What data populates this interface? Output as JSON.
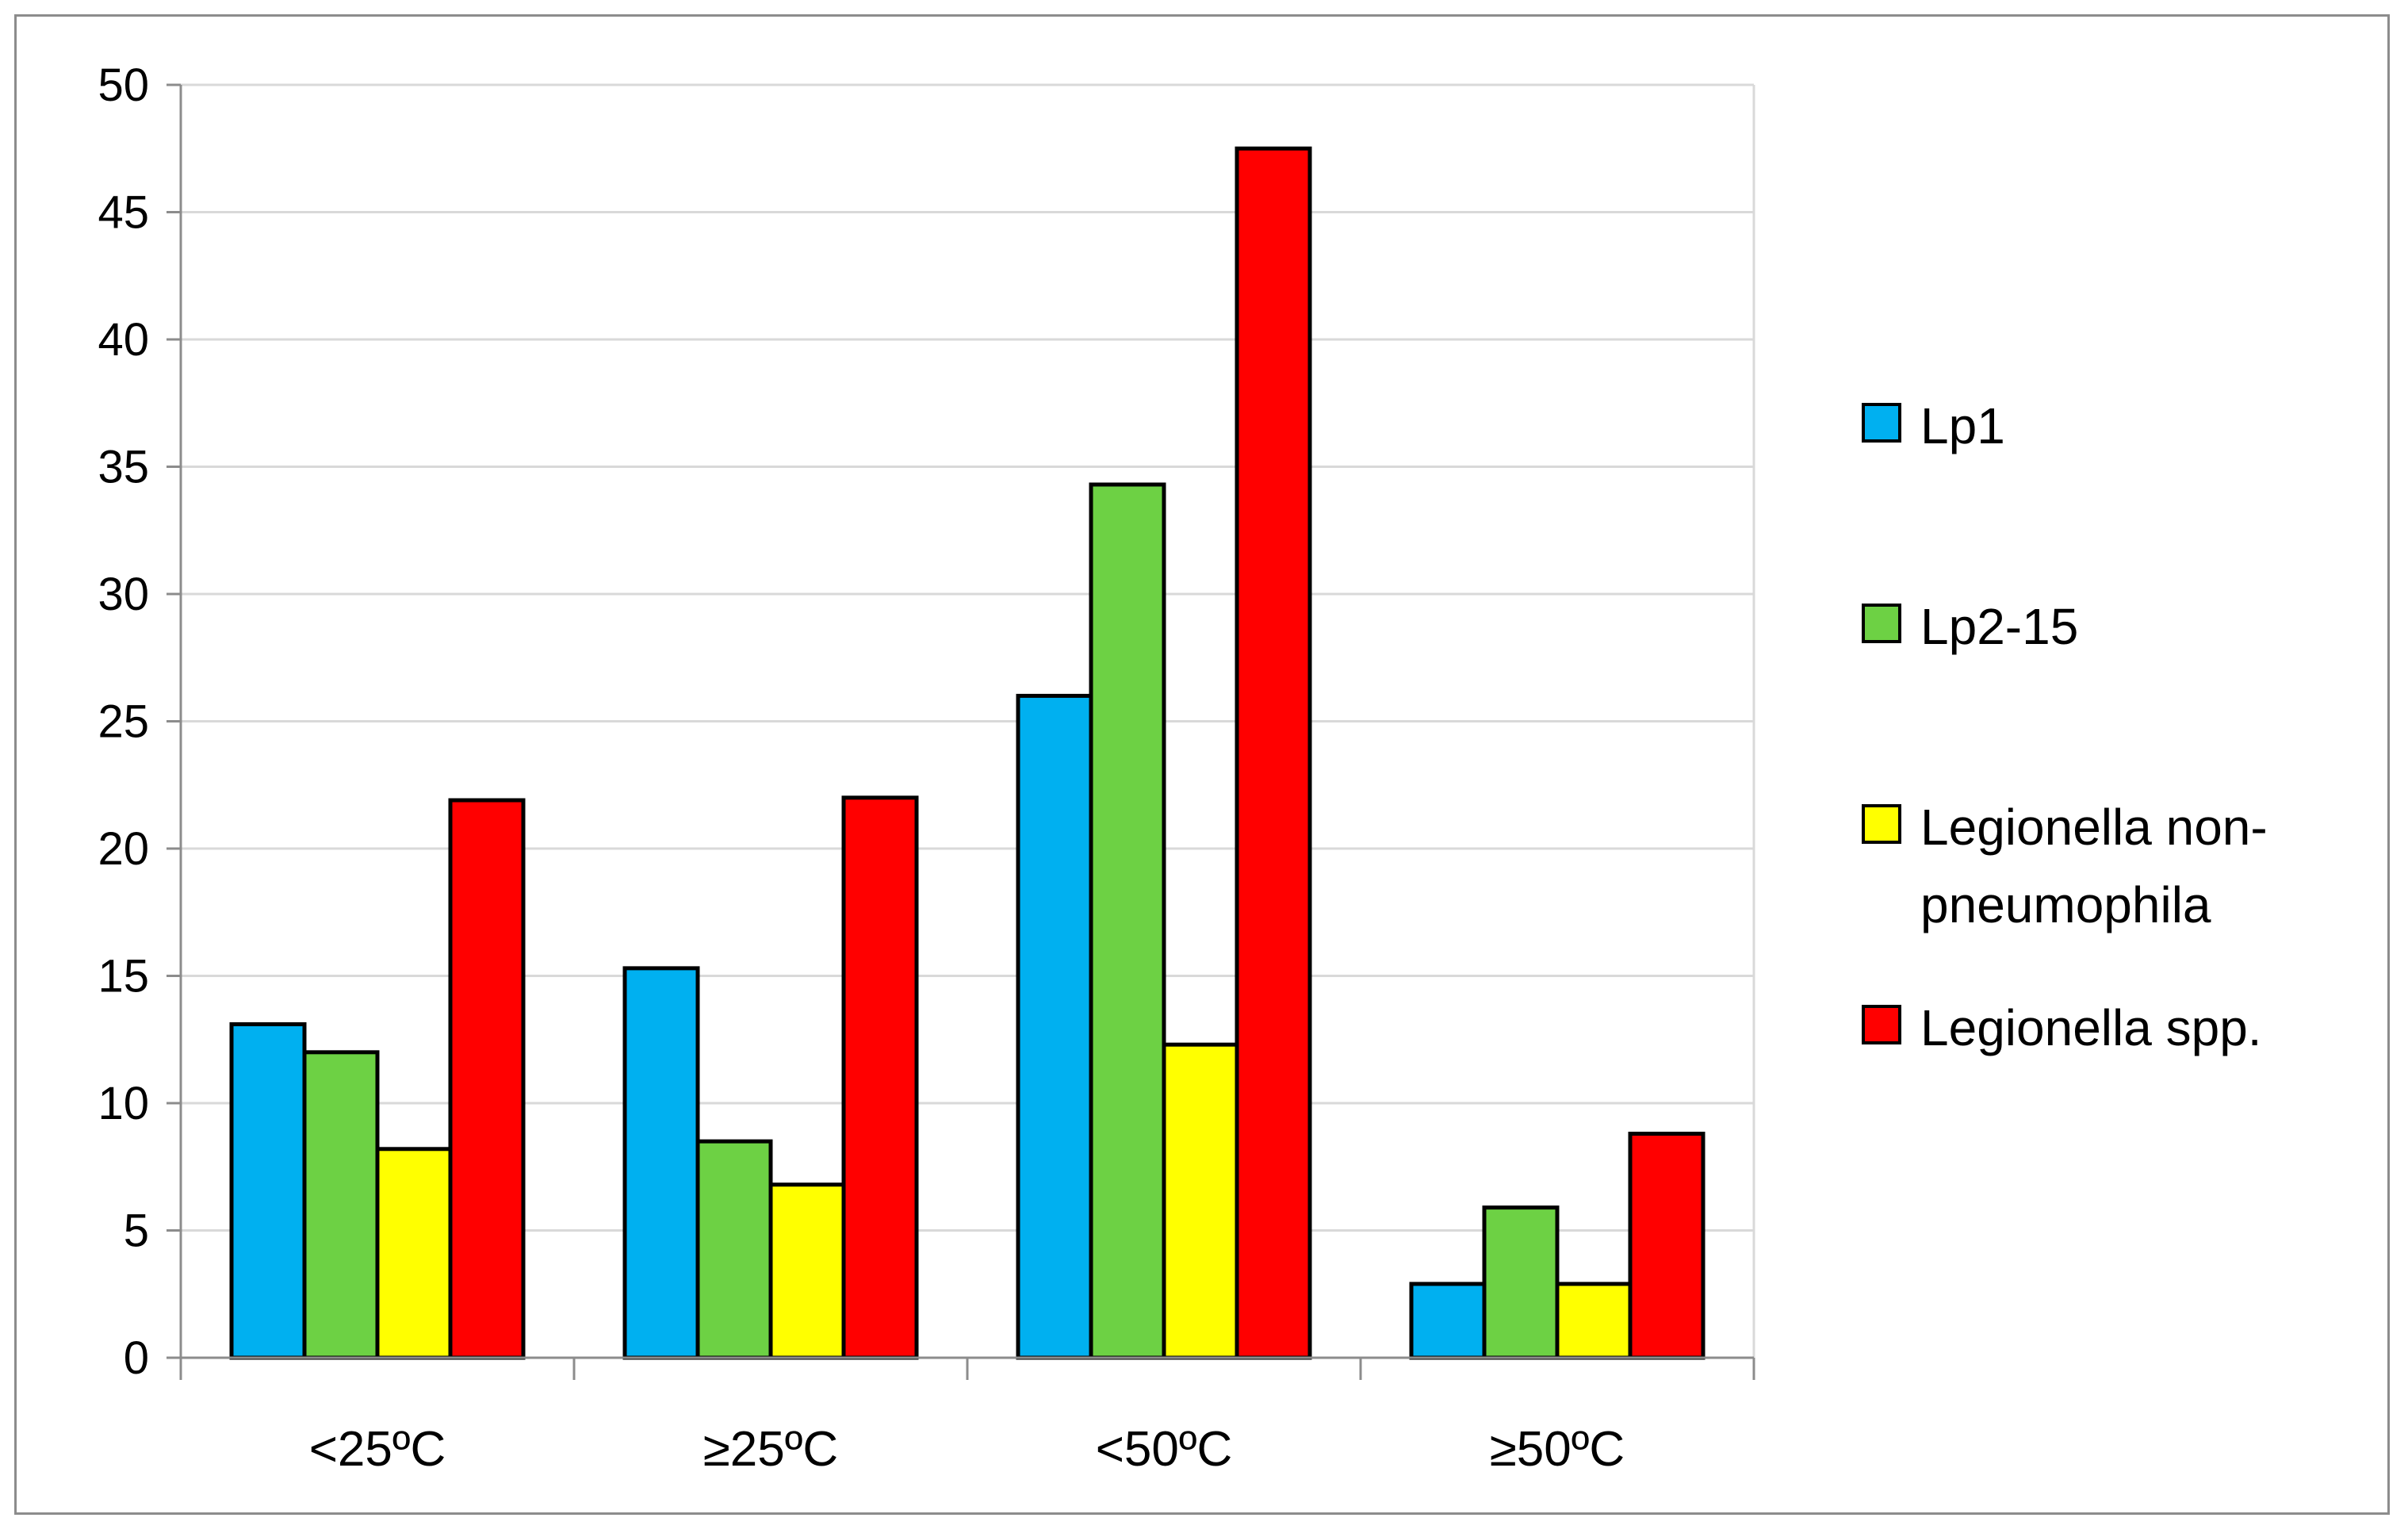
{
  "chart_data": {
    "type": "bar",
    "categories": [
      "<25ºC",
      "≥25ºC",
      "<50ºC",
      "≥50ºC"
    ],
    "series": [
      {
        "name": "Lp1",
        "color": "#00b0f0",
        "values": [
          13.1,
          15.3,
          26.0,
          2.9
        ]
      },
      {
        "name": "Lp2-15",
        "color": "#6dd144",
        "values": [
          12.0,
          8.5,
          34.3,
          5.9
        ]
      },
      {
        "name": "Legionella non-pneumophila",
        "color": "#ffff00",
        "values": [
          8.2,
          6.8,
          12.3,
          2.9
        ]
      },
      {
        "name": "Legionella spp.",
        "color": "#ff0000",
        "values": [
          21.9,
          22.0,
          47.5,
          8.8
        ]
      }
    ],
    "ylim": [
      0,
      50
    ],
    "yticks": [
      "0",
      "5",
      "10",
      "15",
      "20",
      "25",
      "30",
      "35",
      "40",
      "45",
      "50"
    ],
    "grid": true,
    "legend_position": "right",
    "title": "",
    "xlabel": "",
    "ylabel": ""
  },
  "legend": {
    "items": [
      {
        "lines": [
          "Lp1"
        ]
      },
      {
        "lines": [
          "Lp2-15"
        ]
      },
      {
        "lines": [
          "Legionella non-",
          "pneumophila"
        ]
      },
      {
        "lines": [
          "Legionella spp."
        ]
      }
    ]
  }
}
